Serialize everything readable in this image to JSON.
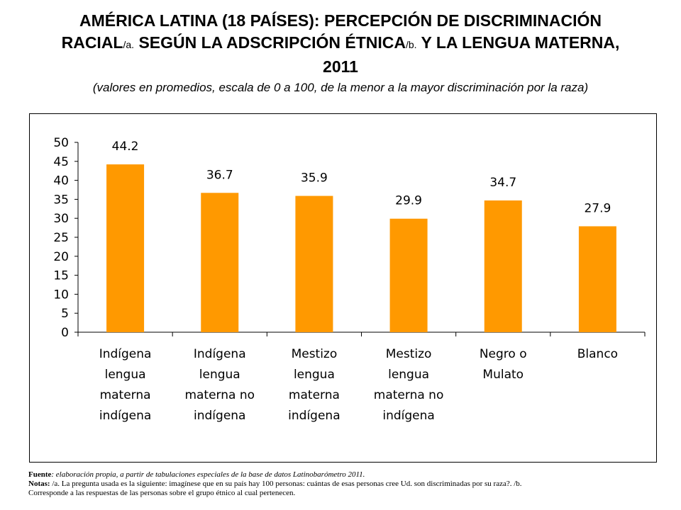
{
  "title": {
    "line1": "AMÉRICA LATINA (18 PAÍSES): PERCEPCIÓN DE DISCRIMINACIÓN",
    "line2_a": "RACIAL",
    "line2_note_a": "/a.",
    "line2_b": " SEGÚN LA ADSCRIPCIÓN ÉTNICA",
    "line2_note_b": "/b.",
    "line2_c": " Y LA LENGUA MATERNA,",
    "line3": "2011",
    "subtitle": "(valores en promedios, escala de 0 a 100, de la menor a la mayor discriminación por la raza)"
  },
  "chart_data": {
    "type": "bar",
    "categories": [
      [
        "Indígena",
        "lengua",
        "materna",
        "indígena"
      ],
      [
        "Indígena",
        "lengua",
        "materna no",
        "indígena"
      ],
      [
        "Mestizo",
        "lengua",
        "materna",
        "indígena"
      ],
      [
        "Mestizo",
        "lengua",
        "materna no",
        "indígena"
      ],
      [
        "Negro o",
        "Mulato"
      ],
      [
        "Blanco"
      ]
    ],
    "values": [
      44.2,
      36.7,
      35.9,
      29.9,
      34.7,
      27.9
    ],
    "value_labels": [
      "44.2",
      "36.7",
      "35.9",
      "29.9",
      "34.7",
      "27.9"
    ],
    "ylim": [
      0,
      50
    ],
    "yticks": [
      0,
      5,
      10,
      15,
      20,
      25,
      30,
      35,
      40,
      45,
      50
    ],
    "grid": false,
    "legend": "none",
    "bar_color": "#FF9900"
  },
  "footer": {
    "fuente_label": "Fuente",
    "fuente_text": ": elaboración propia, a partir de tabulaciones especiales de la base de datos Latinobarómetro 2011.",
    "notas_label": "Notas:",
    "notas_text": " /a. La pregunta usada es la siguiente: imagínese que en su país hay 100 personas: cuántas de esas personas cree Ud. son discriminadas por su raza?. /b.",
    "notas_text2": "Corresponde a las respuestas de las personas sobre el grupo étnico al cual pertenecen."
  }
}
